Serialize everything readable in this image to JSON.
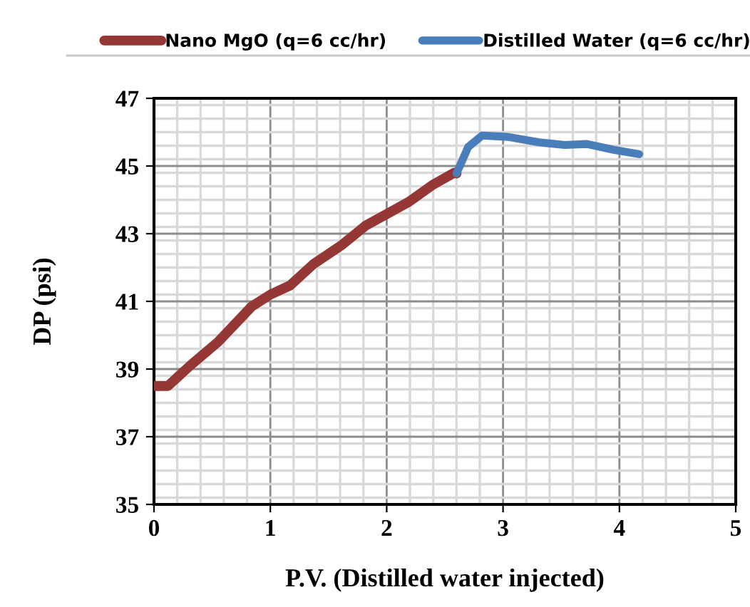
{
  "chart_data": {
    "type": "line",
    "xlabel": "P.V. (Distilled water injected)",
    "ylabel": "DP (psi)",
    "xlim": [
      0,
      5
    ],
    "xticks": [
      0,
      1,
      2,
      3,
      4,
      5
    ],
    "ylim": [
      35,
      47
    ],
    "yticks": [
      35,
      37,
      39,
      41,
      43,
      45,
      47
    ],
    "grid": true,
    "legend": "top",
    "marker": "none",
    "line_style": "solid",
    "series": [
      {
        "name": "Nano MgO (q=6 cc/hr)",
        "color": "#953735",
        "x": [
          0,
          0.12,
          0.31,
          0.55,
          0.84,
          1.0,
          1.17,
          1.37,
          1.62,
          1.82,
          1.99,
          2.19,
          2.39,
          2.58,
          2.6
        ],
        "values": [
          38.5,
          38.5,
          39.1,
          39.8,
          40.85,
          41.2,
          41.47,
          42.1,
          42.68,
          43.24,
          43.56,
          43.94,
          44.43,
          44.8,
          44.78
        ]
      },
      {
        "name": "Distilled Water (q=6 cc/hr)",
        "color": "#4a7ebb",
        "x": [
          2.6,
          2.7,
          2.82,
          3.04,
          3.31,
          3.53,
          3.72,
          3.95,
          4.17
        ],
        "values": [
          44.78,
          45.56,
          45.9,
          45.86,
          45.7,
          45.62,
          45.65,
          45.48,
          45.35
        ]
      }
    ]
  }
}
